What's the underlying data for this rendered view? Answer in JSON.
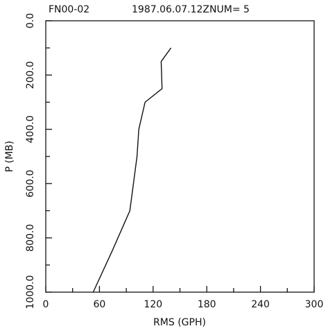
{
  "chart_data": {
    "type": "line",
    "title": "FN00-02",
    "subtitle": "1987.06.07.12ZNUM= 5",
    "x_label": "RMS (GPH)",
    "y_label": "P (MB)",
    "x": [
      140,
      129,
      130,
      111,
      104,
      102,
      94,
      74,
      53
    ],
    "y": [
      100,
      150,
      250,
      300,
      400,
      500,
      700,
      850,
      1000
    ],
    "color": "#111111",
    "xlim": [
      0,
      300
    ],
    "xticks": [
      0,
      60,
      120,
      180,
      240,
      300
    ],
    "x_minor_ticks": [
      30,
      90,
      150,
      210,
      270
    ],
    "ylim": [
      1000,
      0
    ],
    "yticks": [
      {
        "value": 0,
        "label": "0.0"
      },
      {
        "value": 200,
        "label": "200.0"
      },
      {
        "value": 400,
        "label": "400.0"
      },
      {
        "value": 600,
        "label": "600.0"
      },
      {
        "value": 800,
        "label": "800.0"
      },
      {
        "value": 1000,
        "label": "1000.0"
      }
    ],
    "y_minor_ticks": [
      100,
      300,
      500,
      700,
      900
    ],
    "grid": false
  }
}
